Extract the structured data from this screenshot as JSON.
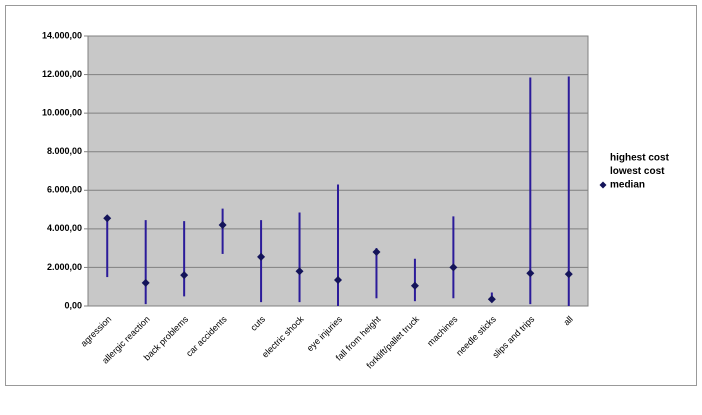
{
  "chart_data": {
    "type": "hilo",
    "categories": [
      "agression",
      "allergic reaction",
      "back problems",
      "car accidents",
      "cuts",
      "electric shock",
      "eye injuries",
      "fall from height",
      "forklift/pallet truck",
      "machines",
      "needle sticks",
      "slips and trips",
      "all"
    ],
    "series": [
      {
        "name": "highest cost",
        "color": "#2b1b9a",
        "values": [
          4600,
          4450,
          4400,
          5050,
          4450,
          4850,
          6300,
          3000,
          2450,
          4650,
          700,
          11850,
          11900
        ]
      },
      {
        "name": "lowest cost",
        "color": "#2b1b9a",
        "values": [
          1500,
          100,
          500,
          2700,
          200,
          200,
          0,
          400,
          250,
          400,
          200,
          100,
          0
        ]
      },
      {
        "name": "median",
        "color": "#14145a",
        "values": [
          4550,
          1200,
          1600,
          4200,
          2550,
          1800,
          1350,
          2800,
          1050,
          2000,
          350,
          1700,
          1650
        ]
      }
    ],
    "ylim": [
      0,
      14000
    ],
    "yticks": [
      {
        "value": 0,
        "label": "0,00"
      },
      {
        "value": 2000,
        "label": "2.000,00"
      },
      {
        "value": 4000,
        "label": "4.000,00"
      },
      {
        "value": 6000,
        "label": "6.000,00"
      },
      {
        "value": 8000,
        "label": "8.000,00"
      },
      {
        "value": 10000,
        "label": "10.000,00"
      },
      {
        "value": 12000,
        "label": "12.000,00"
      },
      {
        "value": 14000,
        "label": "14.000,00"
      }
    ],
    "grid": true,
    "legend": "right"
  }
}
